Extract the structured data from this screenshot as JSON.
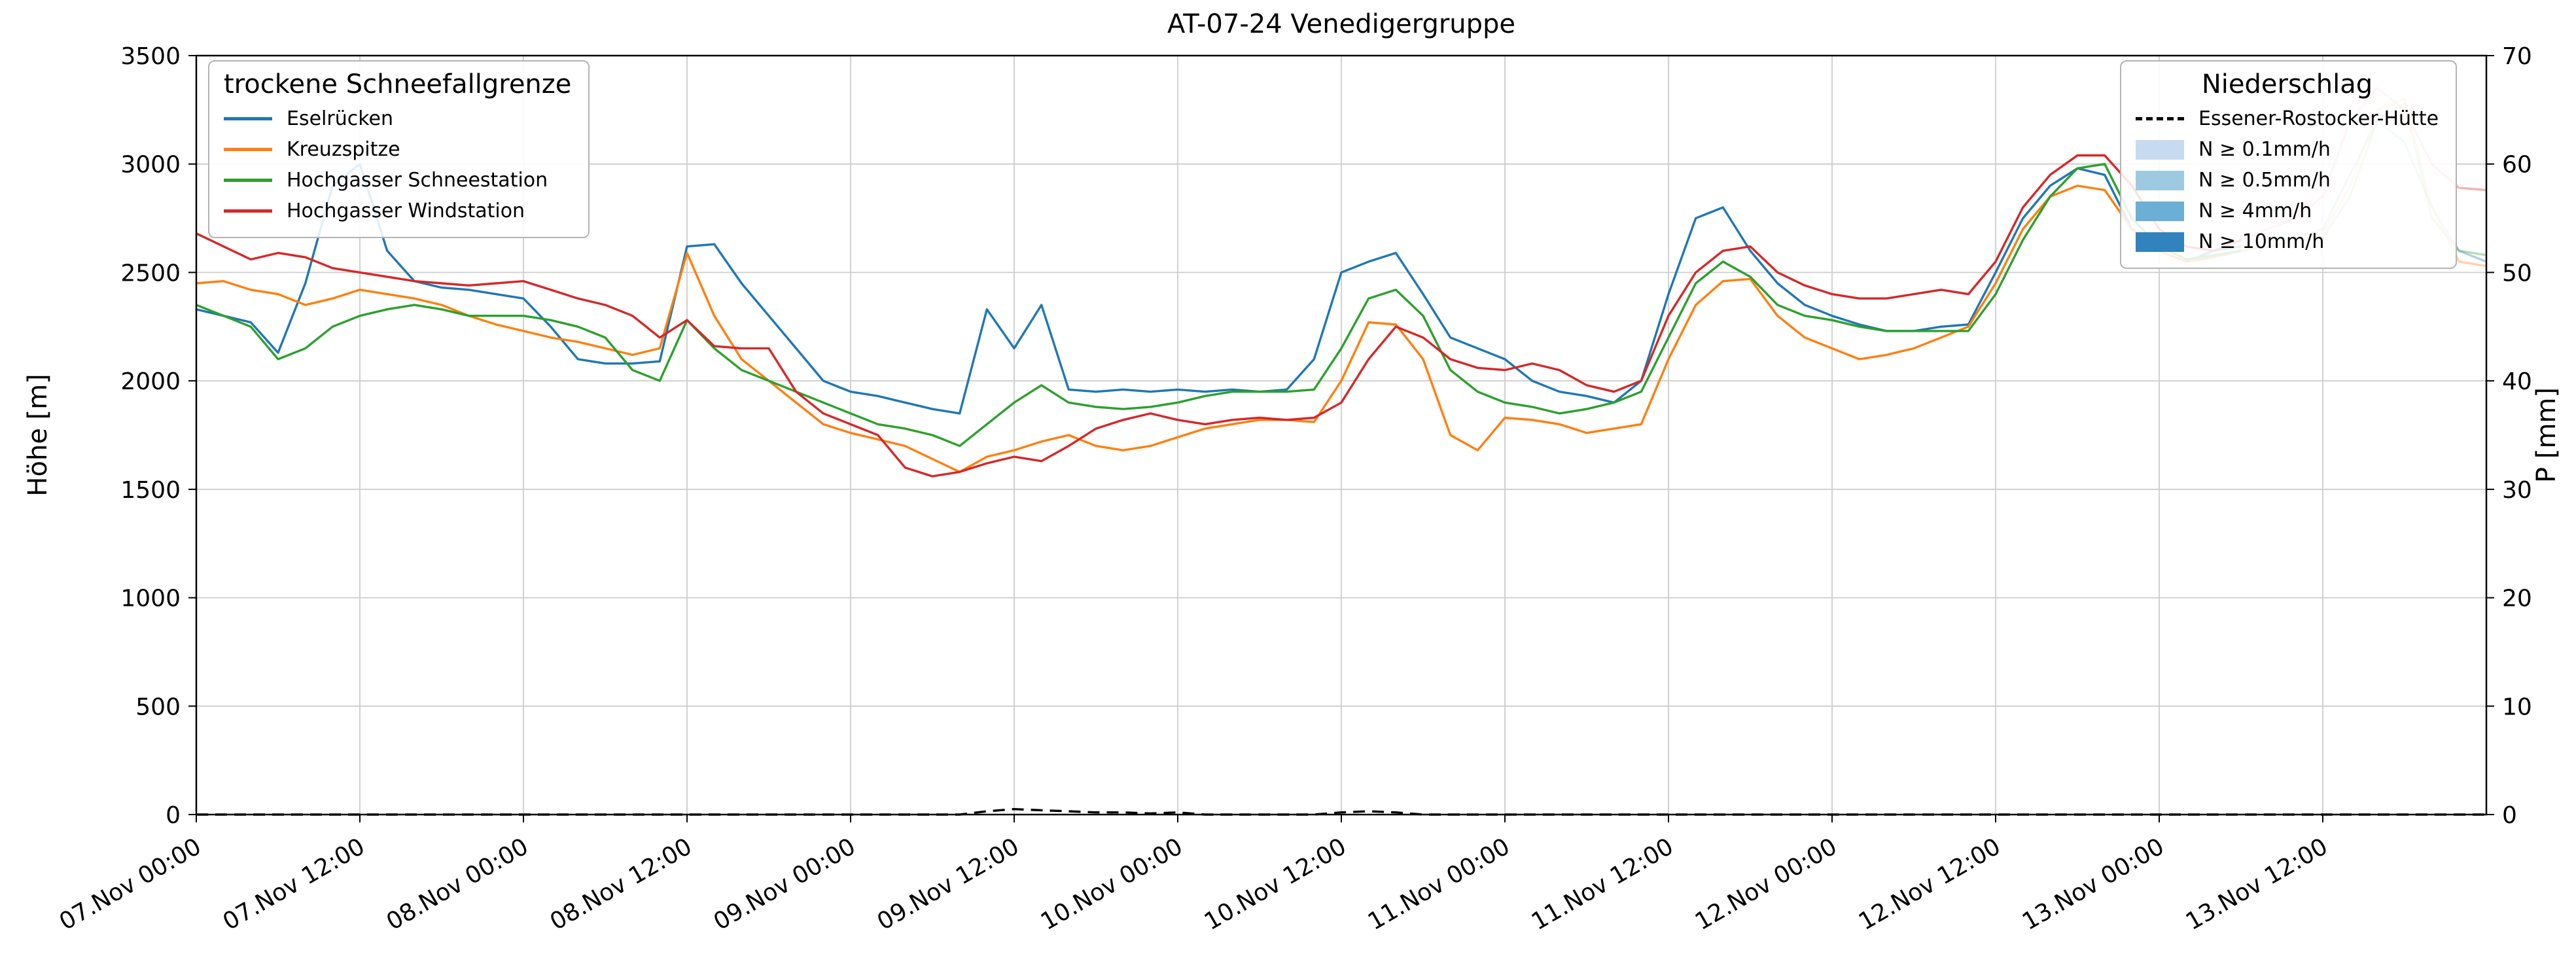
{
  "title": "AT-07-24 Venedigergruppe",
  "axes": {
    "y_left_label": "Höhe [m]",
    "y_right_label": "P [mm]"
  },
  "legends": {
    "snowline": {
      "title": "trockene Schneefallgrenze",
      "entries": [
        {
          "label": "Eselrücken",
          "color": "#1f77b4"
        },
        {
          "label": "Kreuzspitze",
          "color": "#ff7f0e"
        },
        {
          "label": "Hochgasser Schneestation",
          "color": "#2ca02c"
        },
        {
          "label": "Hochgasser Windstation",
          "color": "#d62728"
        }
      ]
    },
    "precip": {
      "title": "Niederschlag",
      "entries": [
        {
          "label": "Essener-Rostocker-Hütte",
          "color": "#000000",
          "type": "dashed-line"
        },
        {
          "label": "N ≥ 0.1mm/h",
          "color": "#c6dbef",
          "type": "patch"
        },
        {
          "label": "N ≥ 0.5mm/h",
          "color": "#9ecae1",
          "type": "patch"
        },
        {
          "label": "N ≥ 4mm/h",
          "color": "#6baed6",
          "type": "patch"
        },
        {
          "label": "N ≥ 10mm/h",
          "color": "#3182bd",
          "type": "patch"
        }
      ]
    }
  },
  "chart_data": {
    "type": "line",
    "title": "AT-07-24 Venedigergruppe",
    "ylabel_left": "Höhe [m]",
    "ylabel_right": "P [mm]",
    "ylim": [
      0,
      3500
    ],
    "y2lim": [
      0,
      70
    ],
    "xlim_hours": [
      0,
      168
    ],
    "x_unit": "hours since 07.Nov 00:00",
    "grid": true,
    "legend_positions": [
      "upper left",
      "upper right"
    ],
    "forecast_start_hour": 150,
    "yticks": [
      0,
      500,
      1000,
      1500,
      2000,
      2500,
      3000,
      3500
    ],
    "y2ticks": [
      0,
      10,
      20,
      30,
      40,
      50,
      60,
      70
    ],
    "xtick_hours": [
      0,
      12,
      24,
      36,
      48,
      60,
      72,
      84,
      96,
      108,
      120,
      132,
      144,
      156
    ],
    "xtick_labels": [
      "07.Nov 00:00",
      "07.Nov 12:00",
      "08.Nov 00:00",
      "08.Nov 12:00",
      "09.Nov 00:00",
      "09.Nov 12:00",
      "10.Nov 00:00",
      "10.Nov 12:00",
      "11.Nov 00:00",
      "11.Nov 12:00",
      "12.Nov 00:00",
      "12.Nov 12:00",
      "13.Nov 00:00",
      "13.Nov 12:00"
    ],
    "x_hours": [
      0,
      2,
      4,
      6,
      8,
      10,
      12,
      14,
      16,
      18,
      20,
      22,
      24,
      26,
      28,
      30,
      32,
      34,
      36,
      38,
      40,
      42,
      44,
      46,
      48,
      50,
      52,
      54,
      56,
      58,
      60,
      62,
      64,
      66,
      68,
      70,
      72,
      74,
      76,
      78,
      80,
      82,
      84,
      86,
      88,
      90,
      92,
      94,
      96,
      98,
      100,
      102,
      104,
      106,
      108,
      110,
      112,
      114,
      116,
      118,
      120,
      122,
      124,
      126,
      128,
      130,
      132,
      134,
      136,
      138,
      140,
      142,
      144,
      146,
      148,
      150,
      152,
      154,
      156,
      158,
      160,
      162,
      164,
      166,
      168
    ],
    "series": [
      {
        "name": "Eselrücken",
        "slug": "eselruecken",
        "color": "#1f77b4",
        "axis": "left",
        "style": "solid",
        "values": [
          2330,
          2300,
          2270,
          2130,
          2450,
          2900,
          3000,
          2600,
          2460,
          2430,
          2420,
          2400,
          2380,
          2250,
          2100,
          2080,
          2080,
          2090,
          2620,
          2630,
          2450,
          2300,
          2150,
          2000,
          1950,
          1930,
          1900,
          1870,
          1850,
          2330,
          2150,
          2350,
          1960,
          1950,
          1960,
          1950,
          1960,
          1950,
          1960,
          1950,
          1960,
          2100,
          2500,
          2550,
          2590,
          2400,
          2200,
          2150,
          2100,
          2000,
          1950,
          1930,
          1900,
          2000,
          2400,
          2750,
          2800,
          2600,
          2450,
          2350,
          2300,
          2260,
          2230,
          2230,
          2250,
          2260,
          2500,
          2750,
          2900,
          2980,
          2950,
          2700,
          2600,
          2550,
          2600,
          2620,
          2640,
          2660,
          2700,
          2950,
          3200,
          3100,
          2800,
          2600,
          2550
        ]
      },
      {
        "name": "Kreuzspitze",
        "slug": "kreuzspitze",
        "color": "#ff7f0e",
        "axis": "left",
        "style": "solid",
        "values": [
          2450,
          2460,
          2420,
          2400,
          2350,
          2380,
          2420,
          2400,
          2380,
          2350,
          2300,
          2260,
          2230,
          2200,
          2180,
          2150,
          2120,
          2150,
          2590,
          2300,
          2100,
          2000,
          1900,
          1800,
          1760,
          1730,
          1700,
          1640,
          1580,
          1650,
          1680,
          1720,
          1750,
          1700,
          1680,
          1700,
          1740,
          1780,
          1800,
          1820,
          1820,
          1810,
          2000,
          2270,
          2260,
          2100,
          1750,
          1680,
          1830,
          1820,
          1800,
          1760,
          1780,
          1800,
          2100,
          2350,
          2460,
          2470,
          2300,
          2200,
          2150,
          2100,
          2120,
          2150,
          2200,
          2250,
          2450,
          2700,
          2850,
          2900,
          2880,
          2700,
          2600,
          2550,
          2570,
          2600,
          2620,
          2650,
          2680,
          2900,
          3250,
          3300,
          2800,
          2550,
          2530
        ]
      },
      {
        "name": "Hochgasser Schneestation",
        "slug": "hochgasser-schneestation",
        "color": "#2ca02c",
        "axis": "left",
        "style": "solid",
        "values": [
          2350,
          2300,
          2250,
          2100,
          2150,
          2250,
          2300,
          2330,
          2350,
          2330,
          2300,
          2300,
          2300,
          2280,
          2250,
          2200,
          2050,
          2000,
          2280,
          2150,
          2050,
          2000,
          1950,
          1900,
          1850,
          1800,
          1780,
          1750,
          1700,
          1800,
          1900,
          1980,
          1900,
          1880,
          1870,
          1880,
          1900,
          1930,
          1950,
          1950,
          1950,
          1960,
          2150,
          2380,
          2420,
          2300,
          2050,
          1950,
          1900,
          1880,
          1850,
          1870,
          1900,
          1950,
          2200,
          2450,
          2550,
          2480,
          2350,
          2300,
          2280,
          2250,
          2230,
          2230,
          2230,
          2230,
          2400,
          2650,
          2850,
          2980,
          3000,
          2750,
          2620,
          2560,
          2580,
          2600,
          2620,
          2640,
          2660,
          2850,
          3200,
          3280,
          2750,
          2600,
          2580
        ]
      },
      {
        "name": "Hochgasser Windstation",
        "slug": "hochgasser-windstation",
        "color": "#d62728",
        "axis": "left",
        "style": "solid",
        "values": [
          2680,
          2620,
          2560,
          2590,
          2570,
          2520,
          2500,
          2480,
          2460,
          2450,
          2440,
          2450,
          2460,
          2420,
          2380,
          2350,
          2300,
          2200,
          2280,
          2160,
          2150,
          2150,
          1950,
          1850,
          1800,
          1750,
          1600,
          1560,
          1580,
          1620,
          1650,
          1630,
          1700,
          1780,
          1820,
          1850,
          1820,
          1800,
          1820,
          1830,
          1820,
          1830,
          1900,
          2100,
          2250,
          2200,
          2100,
          2060,
          2050,
          2080,
          2050,
          1980,
          1950,
          2000,
          2300,
          2500,
          2600,
          2620,
          2500,
          2440,
          2400,
          2380,
          2380,
          2400,
          2420,
          2400,
          2550,
          2800,
          2950,
          3040,
          3040,
          2900,
          2700,
          2620,
          2600,
          2650,
          2700,
          2750,
          2850,
          3200,
          3350,
          3250,
          3000,
          2890,
          2880
        ]
      },
      {
        "name": "Essener-Rostocker-Hütte",
        "slug": "essener-rostocker-huette",
        "color": "#000000",
        "axis": "right",
        "style": "dashed",
        "values": [
          0,
          0,
          0,
          0,
          0,
          0,
          0,
          0,
          0,
          0,
          0,
          0,
          0,
          0,
          0,
          0,
          0,
          0,
          0,
          0,
          0,
          0,
          0,
          0,
          0,
          0,
          0,
          0,
          0,
          0.3,
          0.5,
          0.4,
          0.3,
          0.2,
          0.2,
          0.1,
          0.2,
          0,
          0,
          0,
          0,
          0,
          0.2,
          0.3,
          0.2,
          0,
          0,
          0,
          0,
          0,
          0,
          0,
          0,
          0,
          0,
          0,
          0,
          0,
          0,
          0,
          0,
          0,
          0,
          0,
          0,
          0,
          0,
          0,
          0,
          0,
          0,
          0,
          0,
          0,
          0,
          0,
          0,
          0,
          0,
          0,
          0,
          0,
          0,
          0,
          0
        ]
      }
    ]
  }
}
